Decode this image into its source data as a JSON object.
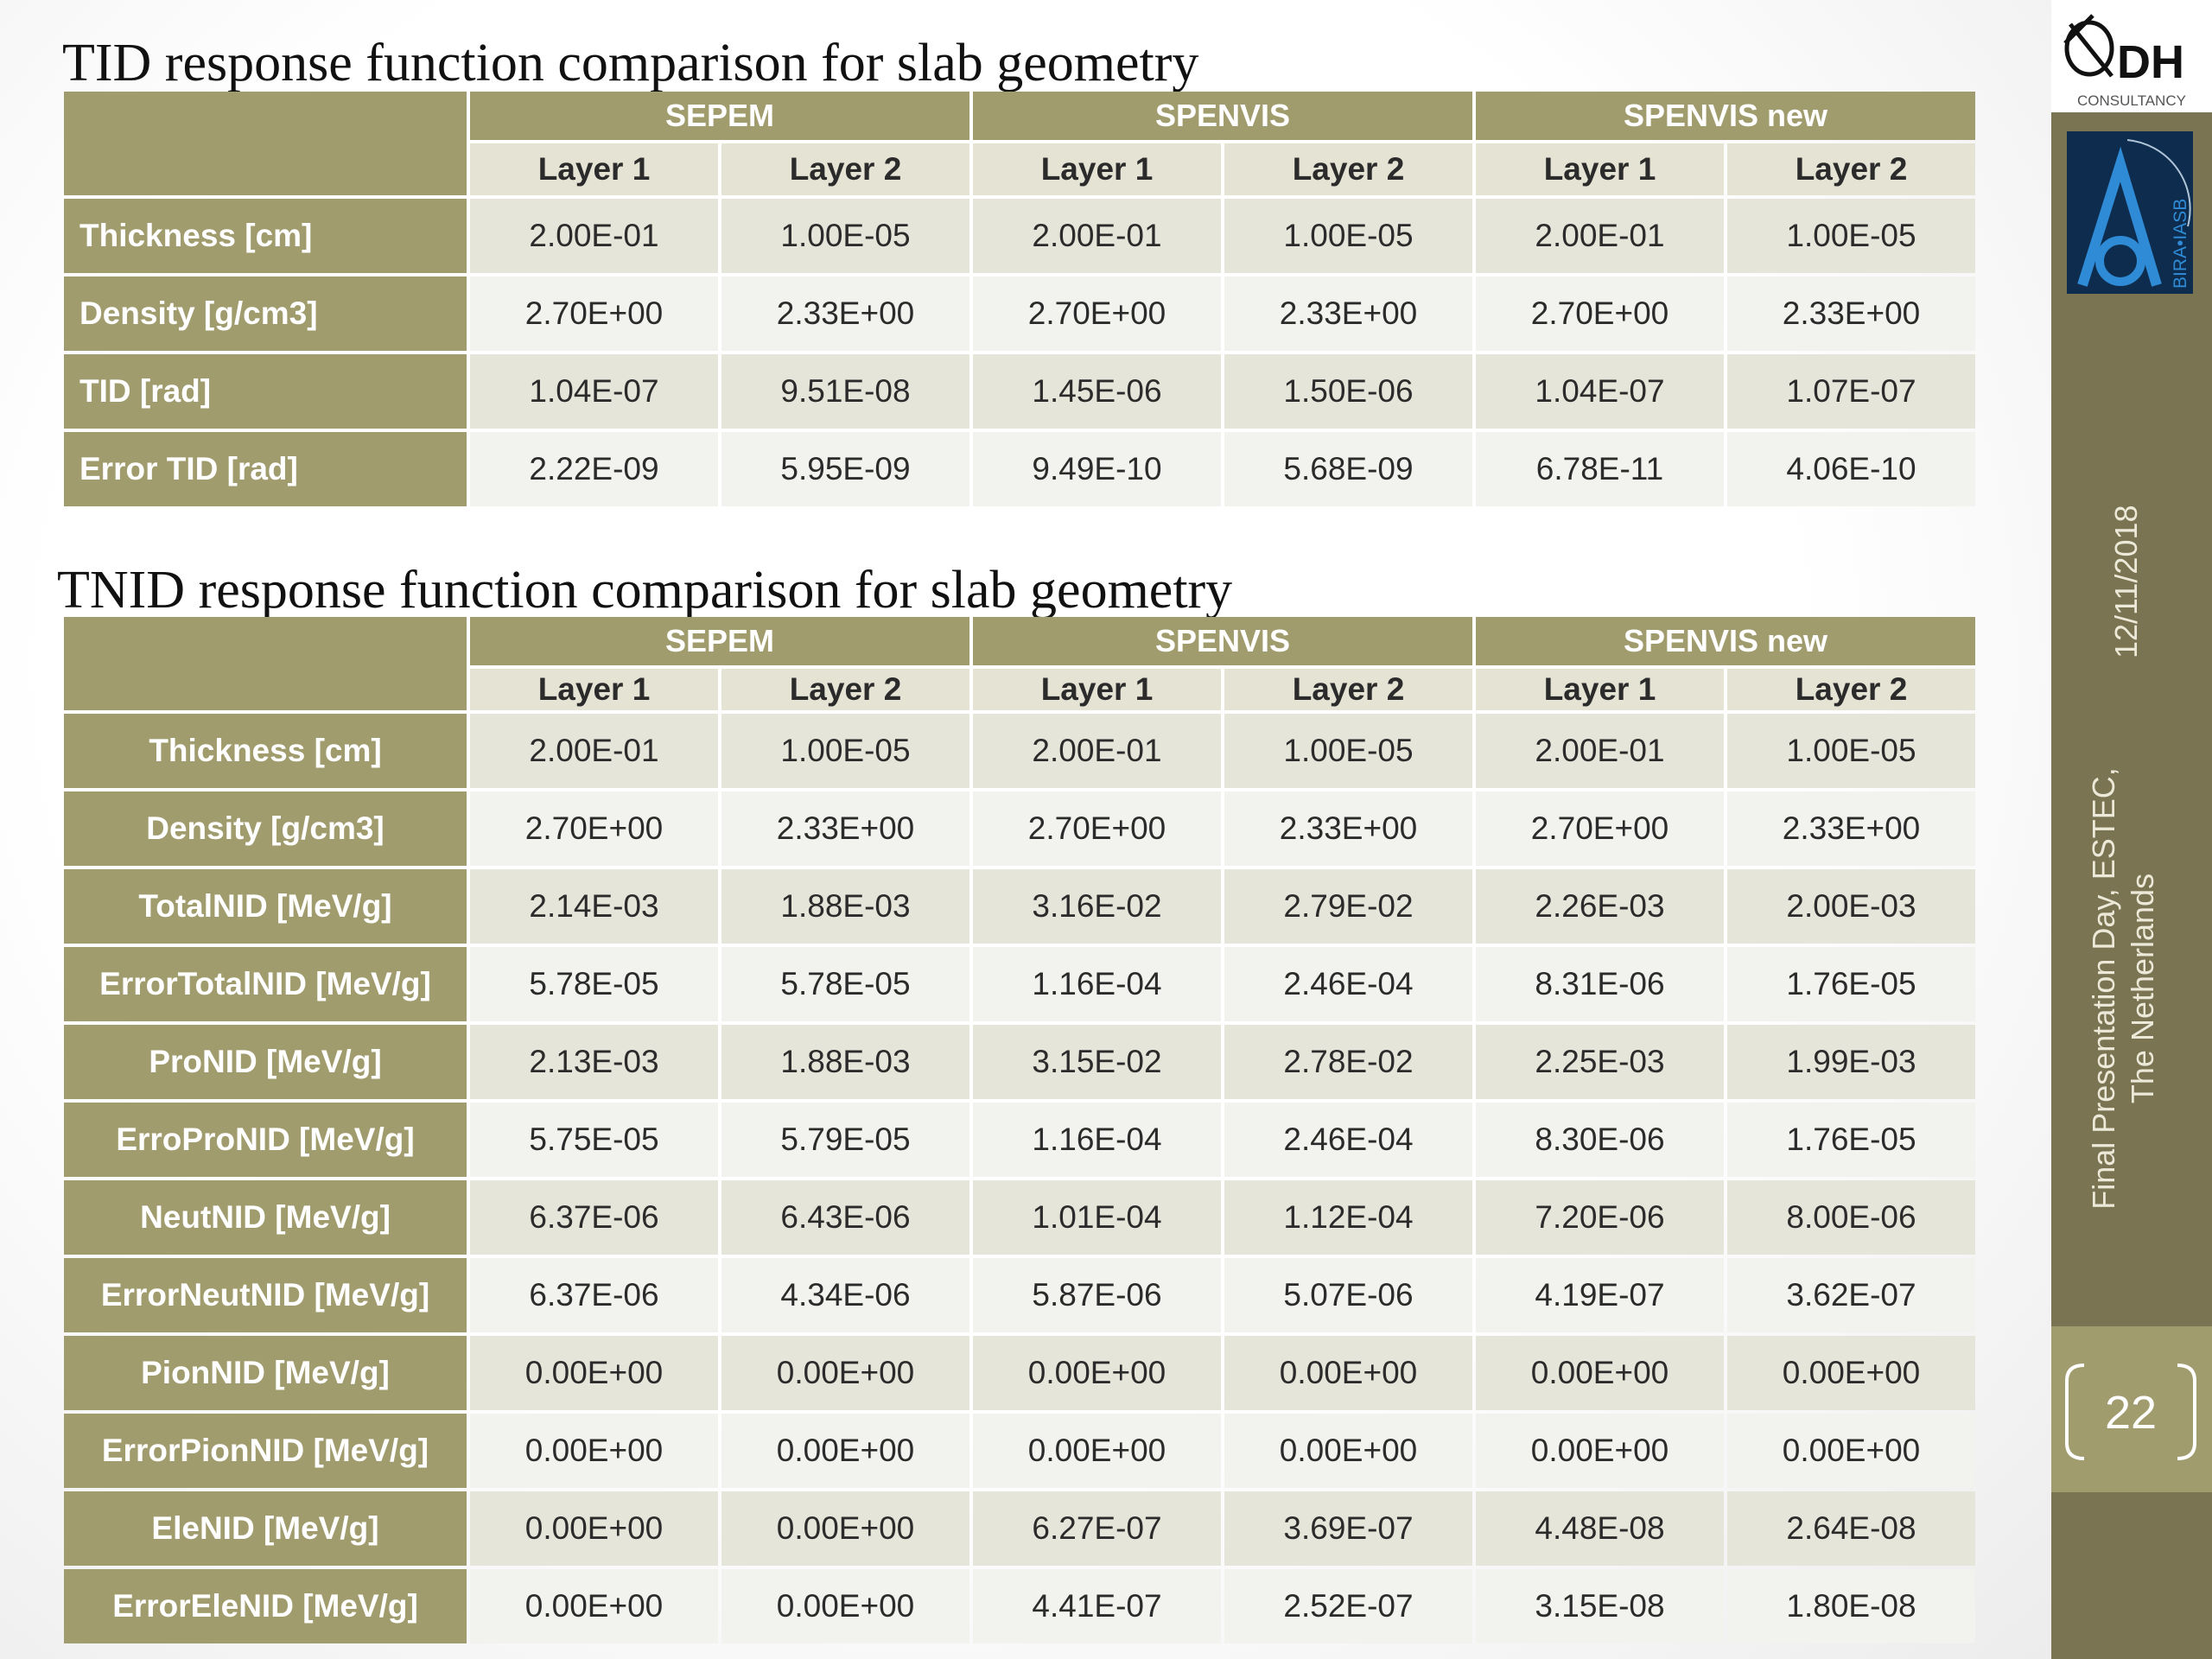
{
  "tid": {
    "title": "TID response function comparison for slab geometry",
    "groups": [
      "SEPEM",
      "SPENVIS",
      "SPENVIS new"
    ],
    "layers": [
      "Layer 1",
      "Layer 2",
      "Layer 1",
      "Layer 2",
      "Layer 1",
      "Layer 2"
    ],
    "rows": [
      {
        "label": "Thickness [cm]",
        "values": [
          "2.00E-01",
          "1.00E-05",
          "2.00E-01",
          "1.00E-05",
          "2.00E-01",
          "1.00E-05"
        ]
      },
      {
        "label": "Density  [g/cm3]",
        "values": [
          "2.70E+00",
          "2.33E+00",
          "2.70E+00",
          "2.33E+00",
          "2.70E+00",
          "2.33E+00"
        ]
      },
      {
        "label": "TID [rad]",
        "values": [
          "1.04E-07",
          "9.51E-08",
          "1.45E-06",
          "1.50E-06",
          "1.04E-07",
          "1.07E-07"
        ]
      },
      {
        "label": "Error TID [rad]",
        "values": [
          "2.22E-09",
          "5.95E-09",
          "9.49E-10",
          "5.68E-09",
          "6.78E-11",
          "4.06E-10"
        ]
      }
    ]
  },
  "tnid": {
    "title": "TNID response function comparison for slab geometry",
    "groups": [
      "SEPEM",
      "SPENVIS",
      "SPENVIS new"
    ],
    "layers": [
      "Layer 1",
      "Layer 2",
      "Layer 1",
      "Layer 2",
      "Layer 1",
      "Layer 2"
    ],
    "rows": [
      {
        "label": "Thickness [cm]",
        "values": [
          "2.00E-01",
          "1.00E-05",
          "2.00E-01",
          "1.00E-05",
          "2.00E-01",
          "1.00E-05"
        ]
      },
      {
        "label": "Density  [g/cm3]",
        "values": [
          "2.70E+00",
          "2.33E+00",
          "2.70E+00",
          "2.33E+00",
          "2.70E+00",
          "2.33E+00"
        ]
      },
      {
        "label": "TotalNID [MeV/g]",
        "values": [
          "2.14E-03",
          "1.88E-03",
          "3.16E-02",
          "2.79E-02",
          "2.26E-03",
          "2.00E-03"
        ]
      },
      {
        "label": "ErrorTotalNID [MeV/g]",
        "values": [
          "5.78E-05",
          "5.78E-05",
          "1.16E-04",
          "2.46E-04",
          "8.31E-06",
          "1.76E-05"
        ]
      },
      {
        "label": "ProNID [MeV/g]",
        "values": [
          "2.13E-03",
          "1.88E-03",
          "3.15E-02",
          "2.78E-02",
          "2.25E-03",
          "1.99E-03"
        ]
      },
      {
        "label": "ErroProNID [MeV/g]",
        "values": [
          "5.75E-05",
          "5.79E-05",
          "1.16E-04",
          "2.46E-04",
          "8.30E-06",
          "1.76E-05"
        ]
      },
      {
        "label": "NeutNID [MeV/g]",
        "values": [
          "6.37E-06",
          "6.43E-06",
          "1.01E-04",
          "1.12E-04",
          "7.20E-06",
          "8.00E-06"
        ]
      },
      {
        "label": "ErrorNeutNID [MeV/g]",
        "values": [
          "6.37E-06",
          "4.34E-06",
          "5.87E-06",
          "5.07E-06",
          "4.19E-07",
          "3.62E-07"
        ]
      },
      {
        "label": "PionNID [MeV/g]",
        "values": [
          "0.00E+00",
          "0.00E+00",
          "0.00E+00",
          "0.00E+00",
          "0.00E+00",
          "0.00E+00"
        ]
      },
      {
        "label": "ErrorPionNID [MeV/g]",
        "values": [
          "0.00E+00",
          "0.00E+00",
          "0.00E+00",
          "0.00E+00",
          "0.00E+00",
          "0.00E+00"
        ]
      },
      {
        "label": "EleNID [MeV/g]",
        "values": [
          "0.00E+00",
          "0.00E+00",
          "6.27E-07",
          "3.69E-07",
          "4.48E-08",
          "2.64E-08"
        ]
      },
      {
        "label": "ErrorEleNID [MeV/g]",
        "values": [
          "0.00E+00",
          "0.00E+00",
          "4.41E-07",
          "2.52E-07",
          "3.15E-08",
          "1.80E-08"
        ]
      }
    ]
  },
  "sidebar": {
    "logo_dh_text": "DH",
    "logo_dh_sub": "CONSULTANCY",
    "logo_bira_text": "BIRA•IASB",
    "date": "12/11/2018",
    "event_line1": "Final Presentation Day, ESTEC,",
    "event_line2": "The Netherlands",
    "page_number": "22"
  },
  "colors": {
    "header_olive": "#a09c6e",
    "sidebar_olive": "#7a7452",
    "row_light": "#f2f2ee",
    "row_dark": "#e6e5da"
  }
}
